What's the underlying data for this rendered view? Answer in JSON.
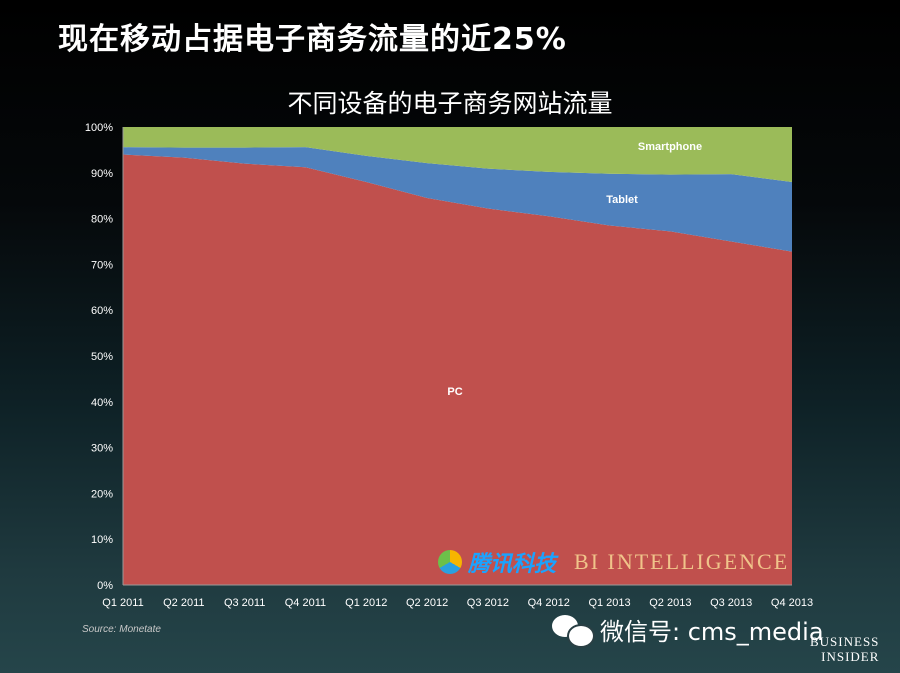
{
  "headline": "现在移动占据电子商务流量的近25%",
  "source": "Source: Monetate",
  "watermark": {
    "tencent_text": "腾讯科技",
    "bi_text": "BI INTELLIGENCE",
    "wechat_text": "微信号: cms_media"
  },
  "publisher_logo": {
    "line1": "BUSINESS",
    "line2": "INSIDER"
  },
  "colors": {
    "pc": "#c0504d",
    "tablet": "#4f81bd",
    "smartphone": "#9bbb59",
    "plot_bg": "#ffffff",
    "tencent": "#1aa3ff",
    "bi": "#f0c48a"
  },
  "chart_data": {
    "type": "area",
    "stacked": true,
    "title": "不同设备的电子商务网站流量",
    "xlabel": "",
    "ylabel": "",
    "ylim": [
      0,
      100
    ],
    "y_ticks": [
      "0%",
      "10%",
      "20%",
      "30%",
      "40%",
      "50%",
      "60%",
      "70%",
      "80%",
      "90%",
      "100%"
    ],
    "categories": [
      "Q1 2011",
      "Q2 2011",
      "Q3 2011",
      "Q4 2011",
      "Q1 2012",
      "Q2 2012",
      "Q3 2012",
      "Q4 2012",
      "Q1 2013",
      "Q2 2013",
      "Q3 2013",
      "Q4 2013"
    ],
    "series": [
      {
        "name": "PC",
        "values": [
          94,
          93.3,
          92,
          91.2,
          88,
          84.5,
          82.2,
          80.5,
          78.5,
          77.2,
          75,
          72.8
        ]
      },
      {
        "name": "Tablet",
        "values": [
          1.6,
          2.2,
          3.5,
          4.4,
          5.7,
          7.6,
          8.7,
          9.7,
          11.3,
          12.4,
          14.7,
          15.2
        ]
      },
      {
        "name": "Smartphone",
        "values": [
          4.4,
          4.5,
          4.5,
          4.4,
          6.3,
          7.9,
          9.1,
          9.8,
          10.2,
          10.4,
          10.3,
          12
        ]
      }
    ],
    "grid": false,
    "legend": "inline labels"
  }
}
